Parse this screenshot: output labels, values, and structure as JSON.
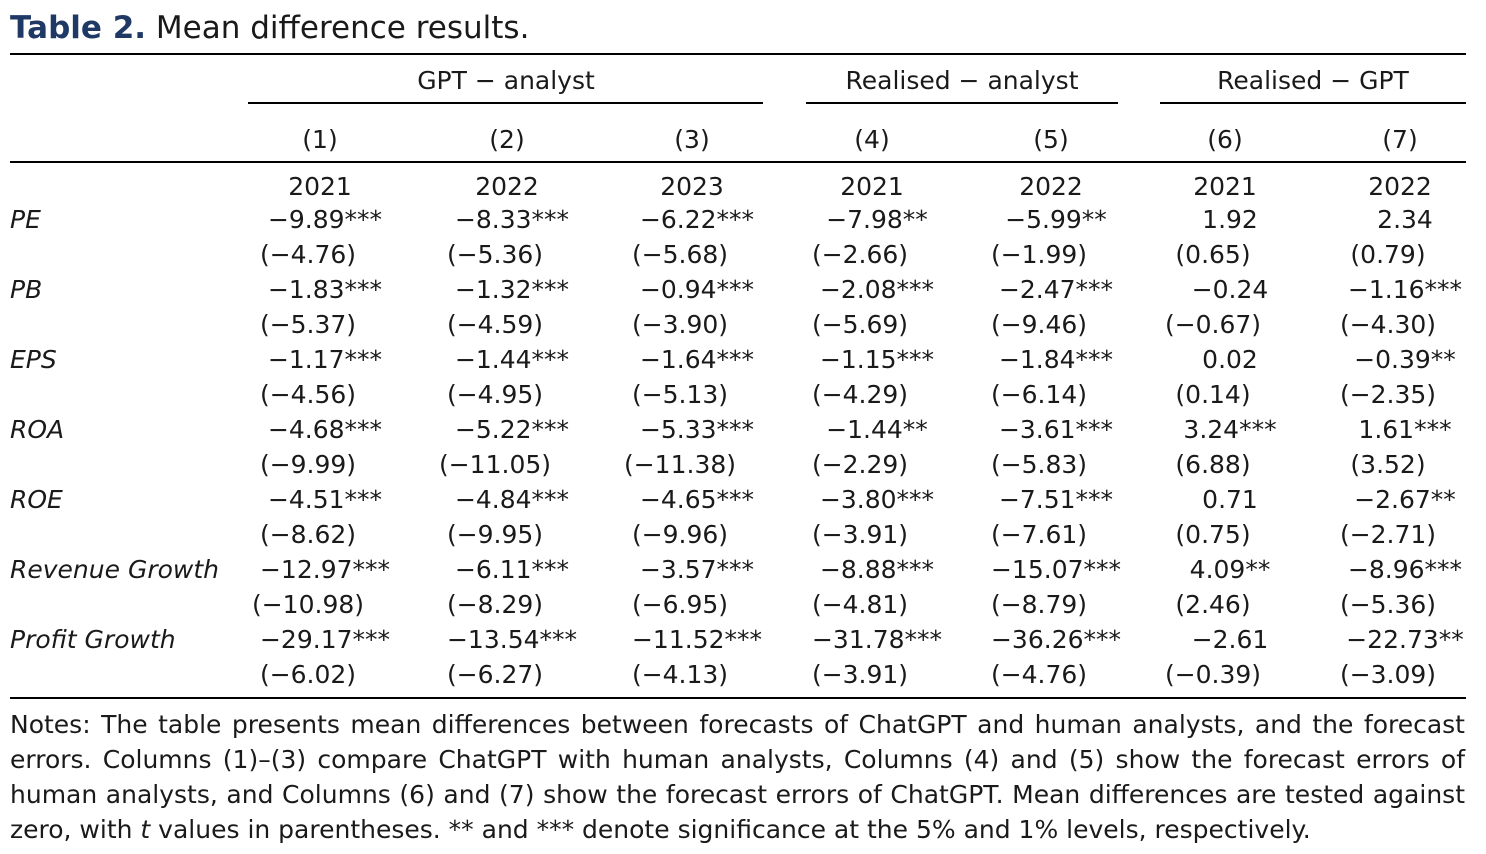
{
  "caption": {
    "label": "Table 2.",
    "title": "Mean difference results."
  },
  "groups": [
    {
      "label": "GPT − analyst"
    },
    {
      "label": "Realised − analyst"
    },
    {
      "label": "Realised − GPT"
    }
  ],
  "column_numbers": [
    "(1)",
    "(2)",
    "(3)",
    "(4)",
    "(5)",
    "(6)",
    "(7)"
  ],
  "years": [
    "2021",
    "2022",
    "2023",
    "2021",
    "2022",
    "2021",
    "2022"
  ],
  "rows": [
    {
      "label": "PE",
      "values": [
        "−9.89***",
        "−8.33***",
        "−6.22***",
        "−7.98**",
        "−5.99**",
        "1.92",
        "2.34"
      ],
      "tstats": [
        "(−4.76)",
        "(−5.36)",
        "(−5.68)",
        "(−2.66)",
        "(−1.99)",
        "(0.65)",
        "(0.79)"
      ]
    },
    {
      "label": "PB",
      "values": [
        "−1.83***",
        "−1.32***",
        "−0.94***",
        "−2.08***",
        "−2.47***",
        "−0.24",
        "−1.16***"
      ],
      "tstats": [
        "(−5.37)",
        "(−4.59)",
        "(−3.90)",
        "(−5.69)",
        "(−9.46)",
        "(−0.67)",
        "(−4.30)"
      ]
    },
    {
      "label": "EPS",
      "values": [
        "−1.17***",
        "−1.44***",
        "−1.64***",
        "−1.15***",
        "−1.84***",
        "0.02",
        "−0.39**"
      ],
      "tstats": [
        "(−4.56)",
        "(−4.95)",
        "(−5.13)",
        "(−4.29)",
        "(−6.14)",
        "(0.14)",
        "(−2.35)"
      ]
    },
    {
      "label": "ROA",
      "values": [
        "−4.68***",
        "−5.22***",
        "−5.33***",
        "−1.44**",
        "−3.61***",
        "3.24***",
        "1.61***"
      ],
      "tstats": [
        "(−9.99)",
        "(−11.05)",
        "(−11.38)",
        "(−2.29)",
        "(−5.83)",
        "(6.88)",
        "(3.52)"
      ]
    },
    {
      "label": "ROE",
      "values": [
        "−4.51***",
        "−4.84***",
        "−4.65***",
        "−3.80***",
        "−7.51***",
        "0.71",
        "−2.67**"
      ],
      "tstats": [
        "(−8.62)",
        "(−9.95)",
        "(−9.96)",
        "(−3.91)",
        "(−7.61)",
        "(0.75)",
        "(−2.71)"
      ]
    },
    {
      "label": "Revenue Growth",
      "values": [
        "−12.97***",
        "−6.11***",
        "−3.57***",
        "−8.88***",
        "−15.07***",
        "4.09**",
        "−8.96***"
      ],
      "tstats": [
        "(−10.98)",
        "(−8.29)",
        "(−6.95)",
        "(−4.81)",
        "(−8.79)",
        "(2.46)",
        "(−5.36)"
      ]
    },
    {
      "label": "Profit Growth",
      "values": [
        "−29.17***",
        "−13.54***",
        "−11.52***",
        "−31.78***",
        "−36.26***",
        "−2.61",
        "−22.73**"
      ],
      "tstats": [
        "(−6.02)",
        "(−6.27)",
        "(−4.13)",
        "(−3.91)",
        "(−4.76)",
        "(−0.39)",
        "(−3.09)"
      ]
    }
  ],
  "notes": {
    "part1": "Notes: The table presents mean differences between forecasts of ChatGPT and human analysts, and the forecast errors. Columns (1)–(3) compare ChatGPT with human analysts, Columns (4) and (5) show the forecast errors of human analysts, and Columns (6) and (7) show the forecast errors of ChatGPT. Mean differences are tested against zero, with ",
    "t": "t",
    "part2": " values in parentheses. ** and *** denote significance at the 5% and 1% levels, respectively."
  }
}
